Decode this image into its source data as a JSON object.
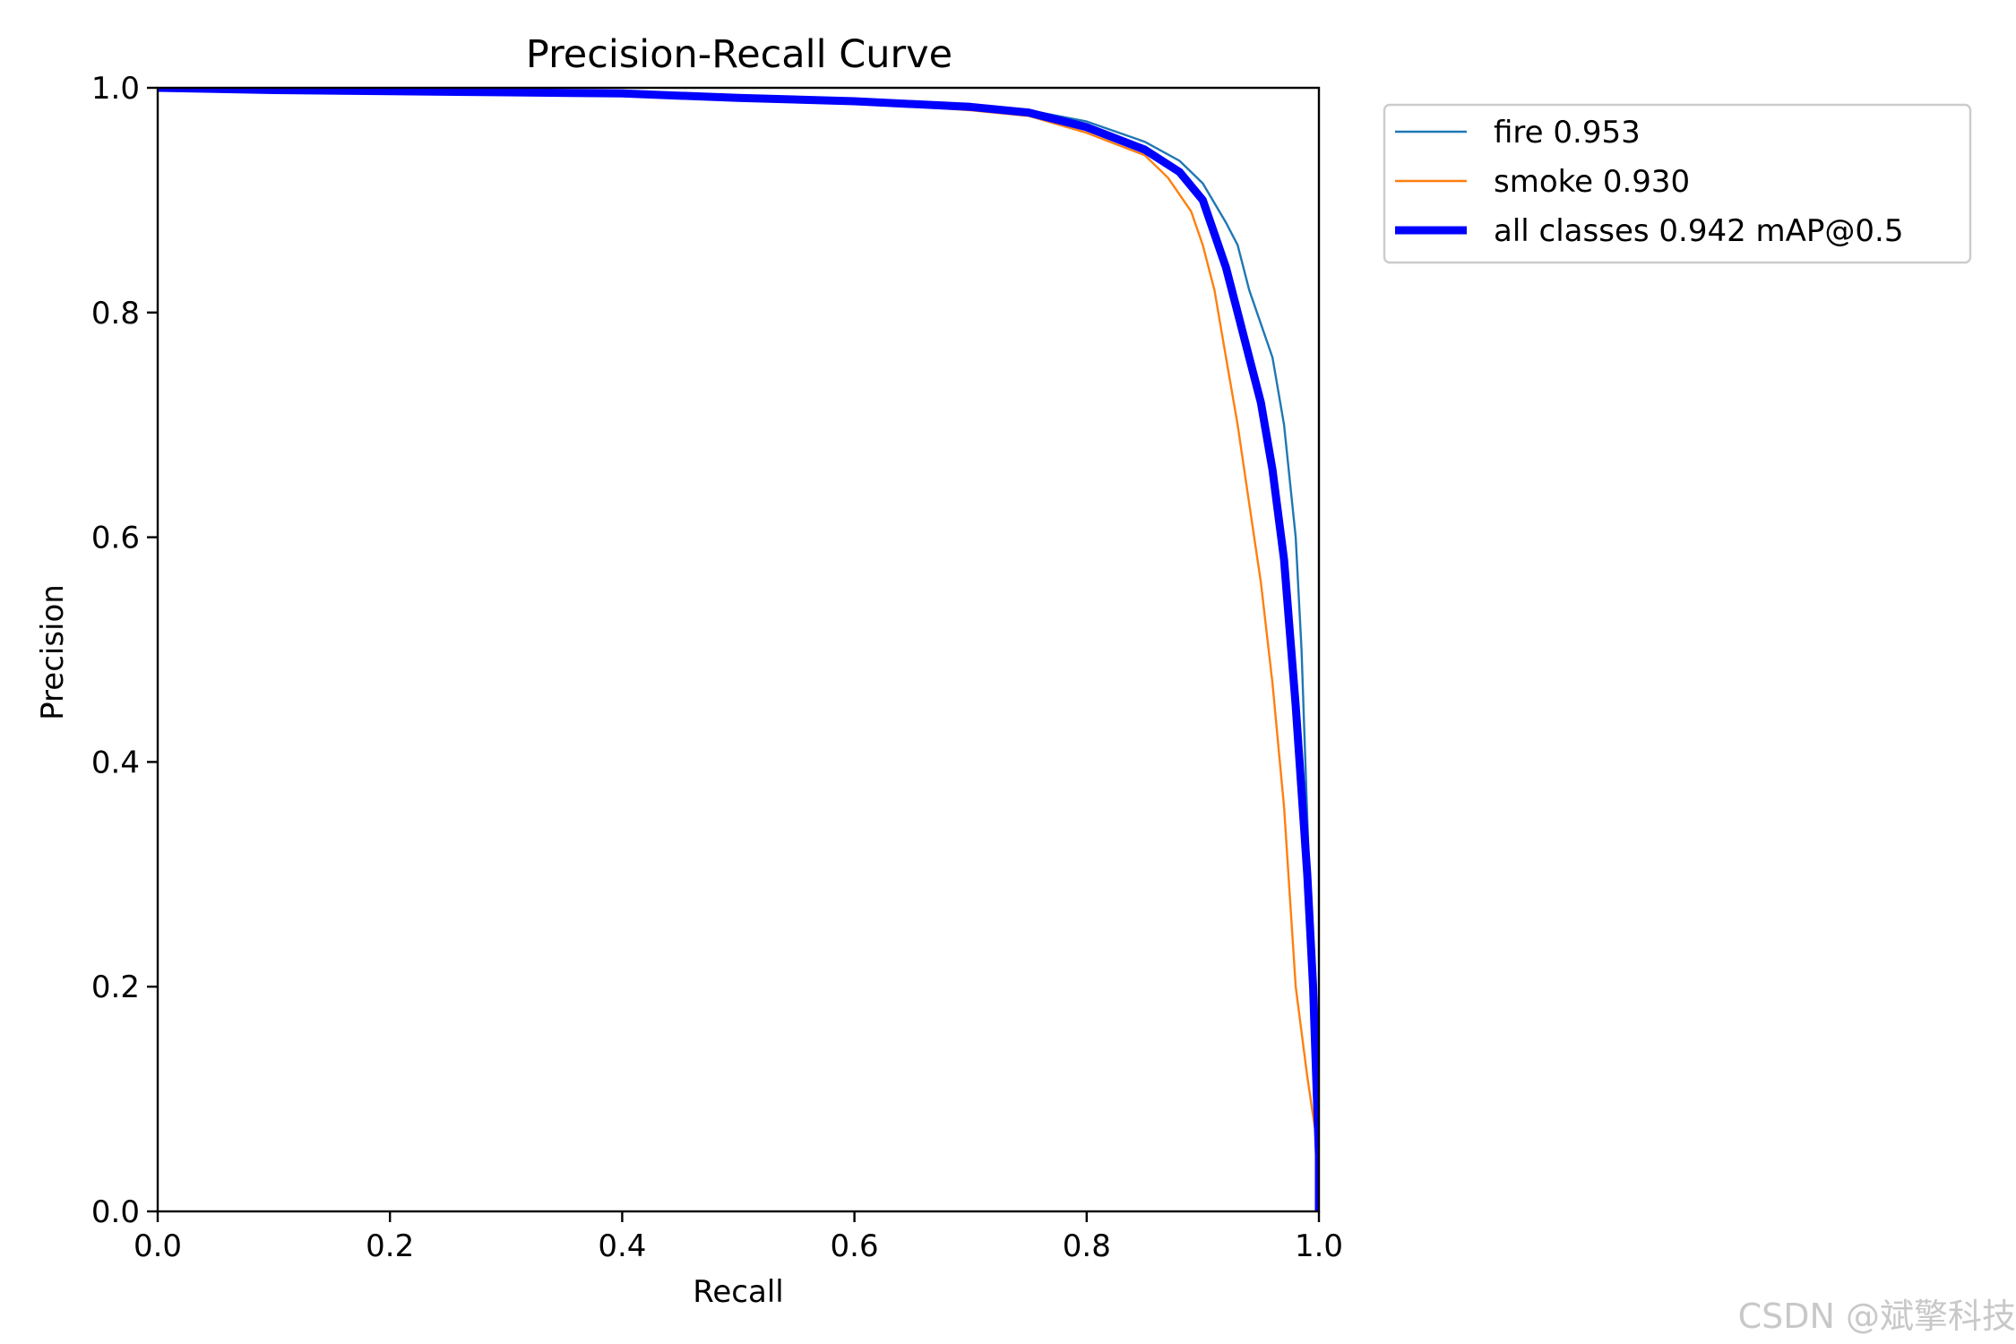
{
  "watermark": "CSDN @斌擎科技",
  "chart_data": {
    "type": "line",
    "title": "Precision-Recall Curve",
    "xlabel": "Recall",
    "ylabel": "Precision",
    "xlim": [
      0,
      1
    ],
    "ylim": [
      0,
      1
    ],
    "xticks": [
      0.0,
      0.2,
      0.4,
      0.6,
      0.8,
      1.0
    ],
    "yticks": [
      0.0,
      0.2,
      0.4,
      0.6,
      0.8,
      1.0
    ],
    "xtick_labels": [
      "0.0",
      "0.2",
      "0.4",
      "0.6",
      "0.8",
      "1.0"
    ],
    "ytick_labels": [
      "0.0",
      "0.2",
      "0.4",
      "0.6",
      "0.8",
      "1.0"
    ],
    "grid": false,
    "legend_position": "outside-top-right",
    "series": [
      {
        "name": "fire 0.953",
        "color": "#1f77b4",
        "linewidth": "thin",
        "x": [
          0.0,
          0.1,
          0.2,
          0.3,
          0.4,
          0.5,
          0.6,
          0.7,
          0.75,
          0.8,
          0.85,
          0.88,
          0.9,
          0.92,
          0.93,
          0.94,
          0.95,
          0.96,
          0.97,
          0.98,
          0.985,
          0.99,
          0.995,
          1.0,
          1.0
        ],
        "y": [
          1.0,
          0.998,
          0.997,
          0.996,
          0.995,
          0.992,
          0.99,
          0.985,
          0.98,
          0.97,
          0.952,
          0.935,
          0.915,
          0.88,
          0.86,
          0.82,
          0.79,
          0.76,
          0.7,
          0.6,
          0.5,
          0.35,
          0.2,
          0.05,
          0.0
        ]
      },
      {
        "name": "smoke 0.930",
        "color": "#ff7f0e",
        "linewidth": "thin",
        "x": [
          0.0,
          0.1,
          0.2,
          0.3,
          0.4,
          0.5,
          0.6,
          0.7,
          0.75,
          0.8,
          0.85,
          0.87,
          0.89,
          0.9,
          0.91,
          0.92,
          0.93,
          0.94,
          0.95,
          0.96,
          0.97,
          0.98,
          0.99,
          1.0,
          1.0
        ],
        "y": [
          1.0,
          0.998,
          0.997,
          0.996,
          0.994,
          0.99,
          0.987,
          0.98,
          0.975,
          0.96,
          0.94,
          0.92,
          0.89,
          0.86,
          0.82,
          0.76,
          0.7,
          0.63,
          0.56,
          0.47,
          0.36,
          0.2,
          0.12,
          0.05,
          0.0
        ]
      },
      {
        "name": "all classes 0.942 mAP@0.5",
        "color": "#0000ff",
        "linewidth": "thick",
        "x": [
          0.0,
          0.1,
          0.2,
          0.3,
          0.4,
          0.5,
          0.6,
          0.7,
          0.75,
          0.8,
          0.85,
          0.88,
          0.9,
          0.91,
          0.92,
          0.93,
          0.94,
          0.95,
          0.96,
          0.97,
          0.98,
          0.99,
          0.995,
          1.0,
          1.0
        ],
        "y": [
          1.0,
          0.998,
          0.997,
          0.996,
          0.995,
          0.991,
          0.988,
          0.983,
          0.978,
          0.965,
          0.945,
          0.925,
          0.9,
          0.87,
          0.84,
          0.8,
          0.76,
          0.72,
          0.66,
          0.58,
          0.45,
          0.3,
          0.2,
          0.05,
          0.0
        ]
      }
    ]
  }
}
